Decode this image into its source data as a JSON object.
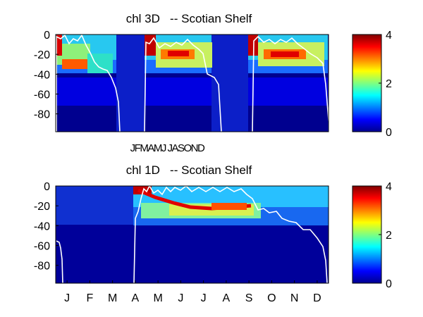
{
  "chart_data": [
    {
      "type": "heatmap",
      "title": "chl 3D   -- Scotian Shelf",
      "y_ticks": [
        "0",
        "-20",
        "-40",
        "-60",
        "-80"
      ],
      "y_tick_values": [
        0,
        -20,
        -40,
        -60,
        -80
      ],
      "ylim": [
        -98,
        0
      ],
      "x_tick_labels": [
        "J",
        "F",
        "M",
        "A",
        "M",
        "J",
        "J",
        "A",
        "S",
        "O",
        "N",
        "D"
      ],
      "x_ticks_shown_as": "JFMAMJ JASOND",
      "colorbar": {
        "ticks": [
          "0",
          "2",
          "4"
        ],
        "tick_values": [
          0,
          2,
          4
        ],
        "range": [
          0,
          4
        ]
      },
      "mixed_layer_depth_line": "white"
    },
    {
      "type": "heatmap",
      "title": "chl 1D   -- Scotian Shelf",
      "y_ticks": [
        "0",
        "-20",
        "-40",
        "-60",
        "-80"
      ],
      "y_tick_values": [
        0,
        -20,
        -40,
        -60,
        -80
      ],
      "ylim": [
        -98,
        0
      ],
      "x_tick_labels": [
        "J",
        "F",
        "M",
        "A",
        "M",
        "J",
        "J",
        "A",
        "S",
        "O",
        "N",
        "D"
      ],
      "colorbar": {
        "ticks": [
          "0",
          "2",
          "4"
        ],
        "tick_values": [
          0,
          2,
          4
        ],
        "range": [
          0,
          4
        ]
      },
      "mixed_layer_depth_line": "white"
    }
  ]
}
